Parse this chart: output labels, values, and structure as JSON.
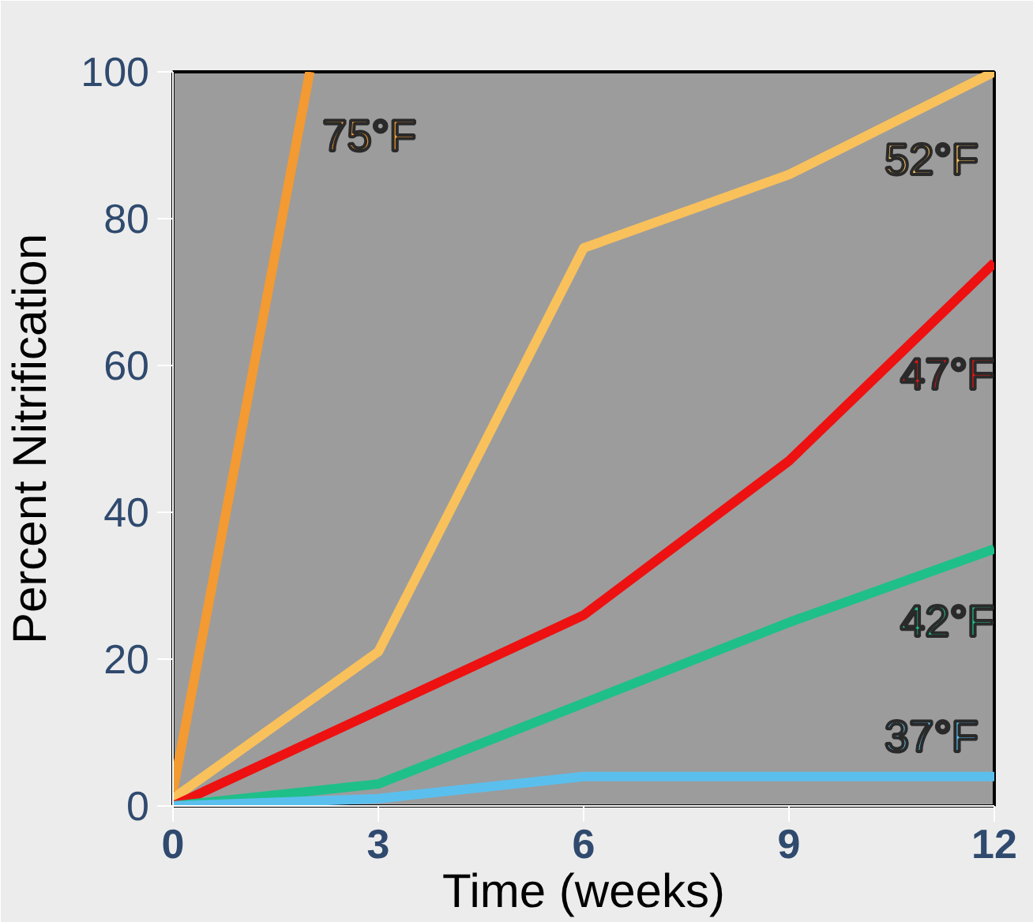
{
  "chart_data": {
    "type": "line",
    "xlabel": "Time (weeks)",
    "ylabel": "Percent Nitrification",
    "xlim": [
      0,
      12
    ],
    "ylim": [
      0,
      100
    ],
    "xticks": [
      0,
      3,
      6,
      9,
      12
    ],
    "yticks": [
      0,
      20,
      40,
      60,
      80,
      100
    ],
    "grid": false,
    "marker": "none",
    "line_style": "solid",
    "series": [
      {
        "name": "75°F",
        "color": "#f39a32",
        "x": [
          0,
          2
        ],
        "values": [
          2,
          100
        ]
      },
      {
        "name": "52°F",
        "color": "#f9c15c",
        "x": [
          0,
          3,
          6,
          9,
          12
        ],
        "values": [
          1,
          21,
          76,
          86,
          100
        ]
      },
      {
        "name": "47°F",
        "color": "#ee1111",
        "x": [
          0,
          3,
          6,
          9,
          12
        ],
        "values": [
          0,
          13,
          26,
          47,
          74
        ]
      },
      {
        "name": "42°F",
        "color": "#1fbf8a",
        "x": [
          0,
          3,
          6,
          9,
          12
        ],
        "values": [
          0,
          3,
          14,
          25,
          35
        ]
      },
      {
        "name": "37°F",
        "color": "#5bbfee",
        "x": [
          0,
          3,
          6,
          9,
          12
        ],
        "values": [
          0,
          1,
          4,
          4,
          4
        ]
      }
    ]
  }
}
